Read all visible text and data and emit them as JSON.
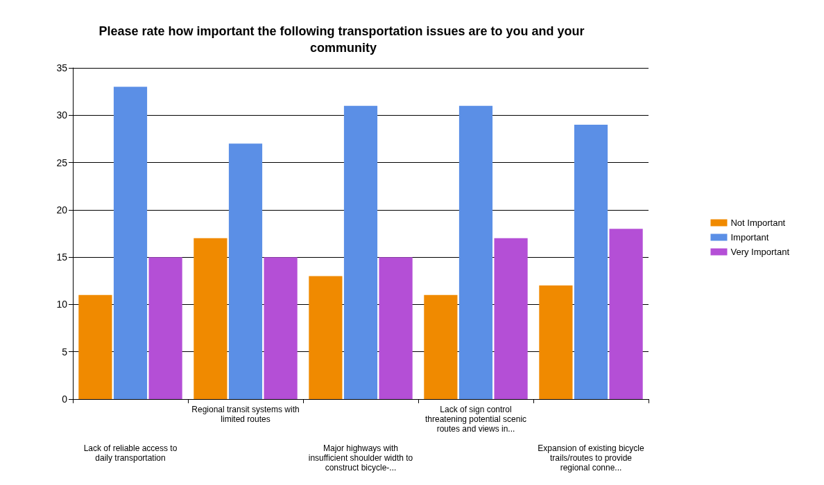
{
  "chart_data": {
    "type": "bar",
    "title": "Please rate how important the following transportation issues are to you and your community",
    "categories": [
      "Lack of reliable access to daily transportation",
      "Regional transit systems with limited routes",
      "Major highways with insufficient shoulder width to construct bicycle-...",
      "Lack of sign control threatening potential scenic routes and views in...",
      "Expansion of existing bicycle trails/routes to provide regional conne..."
    ],
    "series": [
      {
        "name": "Not Important",
        "color": "#f08a00",
        "values": [
          11,
          17,
          13,
          11,
          12
        ]
      },
      {
        "name": "Important",
        "color": "#5b8fe6",
        "values": [
          33,
          27,
          31,
          31,
          29
        ]
      },
      {
        "name": "Very Important",
        "color": "#b44fd6",
        "values": [
          15,
          15,
          15,
          17,
          18
        ]
      }
    ],
    "ylim": [
      0,
      35
    ],
    "yticks": [
      0,
      5,
      10,
      15,
      20,
      25,
      30,
      35
    ],
    "grid": "y",
    "legend": "right"
  }
}
